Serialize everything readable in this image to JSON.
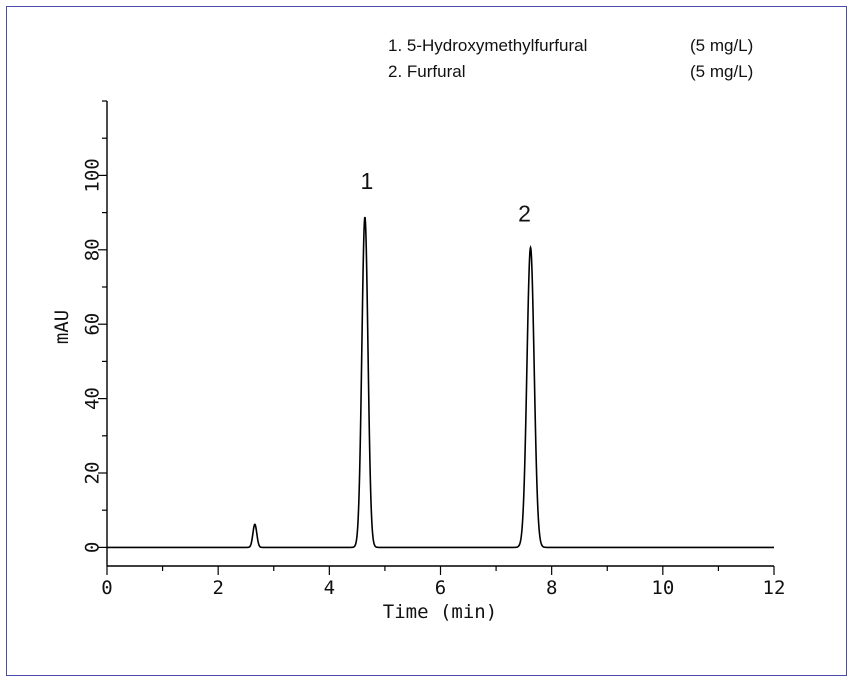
{
  "chart_data": {
    "type": "line",
    "xlabel": "Time (min)",
    "ylabel": "mAU",
    "xlim": [
      0,
      12
    ],
    "ylim": [
      -5,
      120
    ],
    "x_ticks": [
      0,
      2,
      4,
      6,
      8,
      10,
      12
    ],
    "y_ticks": [
      0,
      20,
      40,
      60,
      80,
      100
    ],
    "grid": false,
    "legend_position": "top-right",
    "legend": [
      {
        "label": "1. 5-Hydroxymethylfurfural",
        "conc": "(5 mg/L)"
      },
      {
        "label": "2. Furfural",
        "conc": "(5 mg/L)"
      }
    ],
    "peaks": [
      {
        "label": "1",
        "x": 4.64,
        "y": 88.8
      },
      {
        "label": "2",
        "x": 7.62,
        "y": 80.6
      }
    ],
    "series": [
      {
        "color": "#000000",
        "components": [
          {
            "rt": 2.66,
            "height": 6.2,
            "sigma": 0.035
          },
          {
            "rt": 4.64,
            "height": 88.8,
            "sigma": 0.055
          },
          {
            "rt": 7.62,
            "height": 80.6,
            "sigma": 0.065
          }
        ]
      }
    ]
  }
}
